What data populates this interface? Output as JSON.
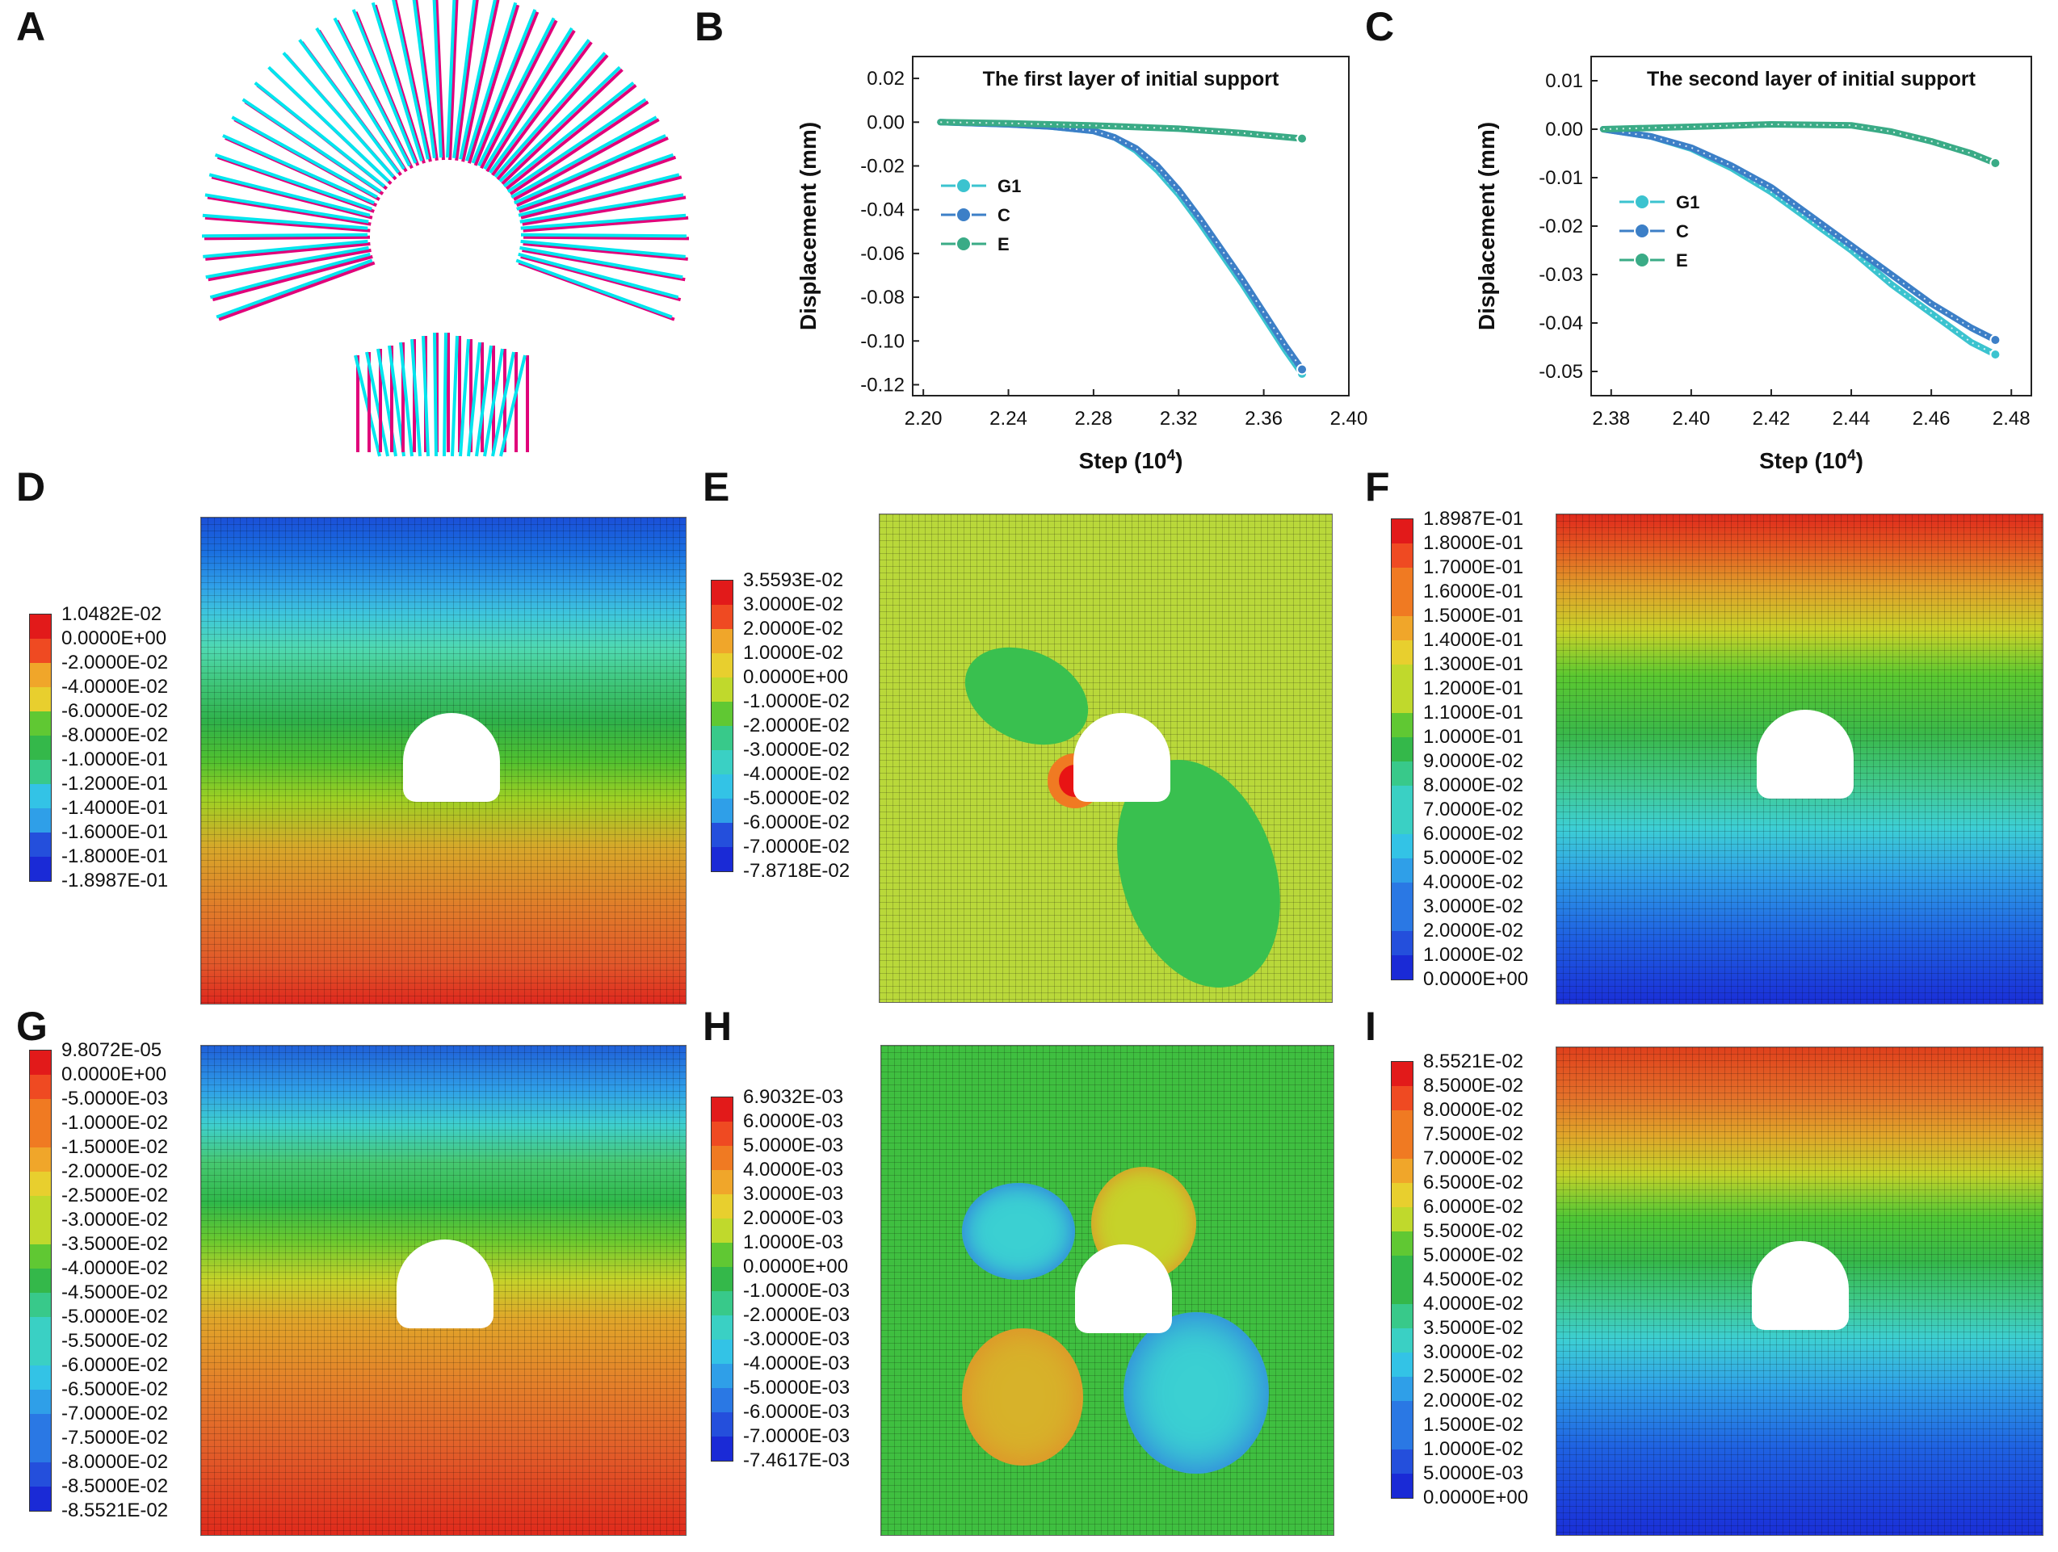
{
  "panel_labels": {
    "A": "A",
    "B": "B",
    "C": "C",
    "D": "D",
    "E": "E",
    "F": "F",
    "G": "G",
    "H": "H",
    "I": "I"
  },
  "colors": {
    "g1": "#3bc3cf",
    "c": "#3c7fc7",
    "e": "#3aab86",
    "struct_cyan": "#00e5ee",
    "struct_magenta": "#e0007a"
  },
  "chart_data": [
    {
      "panel": "B",
      "type": "line",
      "title": "The first layer of initial support",
      "xlabel": "Step (10",
      "xlabel_sup": "4",
      "xlabel_close": ")",
      "ylabel": "Displacement (mm)",
      "xlim": [
        2.195,
        2.4
      ],
      "ylim": [
        -0.125,
        0.03
      ],
      "xticks": [
        2.2,
        2.24,
        2.28,
        2.32,
        2.36,
        2.4
      ],
      "xtick_labels": [
        "2.20",
        "2.24",
        "2.28",
        "2.32",
        "2.36",
        "2.40"
      ],
      "yticks": [
        0.02,
        0.0,
        -0.02,
        -0.04,
        -0.06,
        -0.08,
        -0.1,
        -0.12
      ],
      "ytick_labels": [
        "0.02",
        "0.00",
        "-0.02",
        "-0.04",
        "-0.06",
        "-0.08",
        "-0.10",
        "-0.12"
      ],
      "legend": [
        "G1",
        "C",
        "E"
      ],
      "series": [
        {
          "name": "G1",
          "x": [
            2.208,
            2.24,
            2.26,
            2.28,
            2.29,
            2.3,
            2.31,
            2.32,
            2.33,
            2.34,
            2.35,
            2.36,
            2.37,
            2.378
          ],
          "y": [
            0.0,
            -0.001,
            -0.002,
            -0.004,
            -0.007,
            -0.013,
            -0.022,
            -0.033,
            -0.046,
            -0.06,
            -0.074,
            -0.089,
            -0.104,
            -0.115
          ]
        },
        {
          "name": "C",
          "x": [
            2.208,
            2.24,
            2.26,
            2.28,
            2.29,
            2.3,
            2.31,
            2.32,
            2.33,
            2.34,
            2.35,
            2.36,
            2.37,
            2.378
          ],
          "y": [
            0.0,
            -0.001,
            -0.002,
            -0.004,
            -0.007,
            -0.012,
            -0.02,
            -0.031,
            -0.044,
            -0.058,
            -0.072,
            -0.087,
            -0.102,
            -0.113
          ]
        },
        {
          "name": "E",
          "x": [
            2.208,
            2.24,
            2.28,
            2.32,
            2.35,
            2.378
          ],
          "y": [
            0.0,
            -0.0005,
            -0.0015,
            -0.003,
            -0.005,
            -0.0075
          ]
        }
      ]
    },
    {
      "panel": "C",
      "type": "line",
      "title": "The second layer of initial support",
      "xlabel": "Step (10",
      "xlabel_sup": "4",
      "xlabel_close": ")",
      "ylabel": "Displacement (mm)",
      "xlim": [
        2.375,
        2.485
      ],
      "ylim": [
        -0.055,
        0.015
      ],
      "xticks": [
        2.38,
        2.4,
        2.42,
        2.44,
        2.46,
        2.48
      ],
      "xtick_labels": [
        "2.38",
        "2.40",
        "2.42",
        "2.44",
        "2.46",
        "2.48"
      ],
      "yticks": [
        0.01,
        0.0,
        -0.01,
        -0.02,
        -0.03,
        -0.04,
        -0.05
      ],
      "ytick_labels": [
        "0.01",
        "0.00",
        "-0.01",
        "-0.02",
        "-0.03",
        "-0.04",
        "-0.05"
      ],
      "legend": [
        "G1",
        "C",
        "E"
      ],
      "series": [
        {
          "name": "G1",
          "x": [
            2.378,
            2.39,
            2.4,
            2.41,
            2.42,
            2.43,
            2.44,
            2.45,
            2.46,
            2.47,
            2.476
          ],
          "y": [
            0.0,
            -0.0015,
            -0.004,
            -0.008,
            -0.013,
            -0.019,
            -0.025,
            -0.032,
            -0.038,
            -0.044,
            -0.0465
          ]
        },
        {
          "name": "C",
          "x": [
            2.378,
            2.39,
            2.4,
            2.41,
            2.42,
            2.43,
            2.44,
            2.45,
            2.46,
            2.47,
            2.476
          ],
          "y": [
            0.0,
            -0.0015,
            -0.0038,
            -0.0075,
            -0.012,
            -0.018,
            -0.024,
            -0.03,
            -0.036,
            -0.041,
            -0.0435
          ]
        },
        {
          "name": "E",
          "x": [
            2.378,
            2.4,
            2.42,
            2.44,
            2.45,
            2.46,
            2.47,
            2.476
          ],
          "y": [
            0.0,
            0.0005,
            0.001,
            0.0008,
            -0.0005,
            -0.0025,
            -0.005,
            -0.007
          ]
        }
      ]
    }
  ],
  "legends": {
    "D": [
      "1.0482E-02",
      "0.0000E+00",
      "-2.0000E-02",
      "-4.0000E-02",
      "-6.0000E-02",
      "-8.0000E-02",
      "-1.0000E-01",
      "-1.2000E-01",
      "-1.4000E-01",
      "-1.6000E-01",
      "-1.8000E-01",
      "-1.8987E-01"
    ],
    "E": [
      "3.5593E-02",
      "3.0000E-02",
      "2.0000E-02",
      "1.0000E-02",
      "0.0000E+00",
      "-1.0000E-02",
      "-2.0000E-02",
      "-3.0000E-02",
      "-4.0000E-02",
      "-5.0000E-02",
      "-6.0000E-02",
      "-7.0000E-02",
      "-7.8718E-02"
    ],
    "F": [
      "1.8987E-01",
      "1.8000E-01",
      "1.7000E-01",
      "1.6000E-01",
      "1.5000E-01",
      "1.4000E-01",
      "1.3000E-01",
      "1.2000E-01",
      "1.1000E-01",
      "1.0000E-01",
      "9.0000E-02",
      "8.0000E-02",
      "7.0000E-02",
      "6.0000E-02",
      "5.0000E-02",
      "4.0000E-02",
      "3.0000E-02",
      "2.0000E-02",
      "1.0000E-02",
      "0.0000E+00"
    ],
    "G": [
      "9.8072E-05",
      "0.0000E+00",
      "-5.0000E-03",
      "-1.0000E-02",
      "-1.5000E-02",
      "-2.0000E-02",
      "-2.5000E-02",
      "-3.0000E-02",
      "-3.5000E-02",
      "-4.0000E-02",
      "-4.5000E-02",
      "-5.0000E-02",
      "-5.5000E-02",
      "-6.0000E-02",
      "-6.5000E-02",
      "-7.0000E-02",
      "-7.5000E-02",
      "-8.0000E-02",
      "-8.5000E-02",
      "-8.5521E-02"
    ],
    "H": [
      "6.9032E-03",
      "6.0000E-03",
      "5.0000E-03",
      "4.0000E-03",
      "3.0000E-03",
      "2.0000E-03",
      "1.0000E-03",
      "0.0000E+00",
      "-1.0000E-03",
      "-2.0000E-03",
      "-3.0000E-03",
      "-4.0000E-03",
      "-5.0000E-03",
      "-6.0000E-03",
      "-7.0000E-03",
      "-7.4617E-03"
    ],
    "I": [
      "8.5521E-02",
      "8.5000E-02",
      "8.0000E-02",
      "7.5000E-02",
      "7.0000E-02",
      "6.5000E-02",
      "6.0000E-02",
      "5.5000E-02",
      "5.0000E-02",
      "4.5000E-02",
      "4.0000E-02",
      "3.5000E-02",
      "3.0000E-02",
      "2.5000E-02",
      "2.0000E-02",
      "1.5000E-02",
      "1.0000E-02",
      "5.0000E-03",
      "0.0000E+00"
    ]
  }
}
